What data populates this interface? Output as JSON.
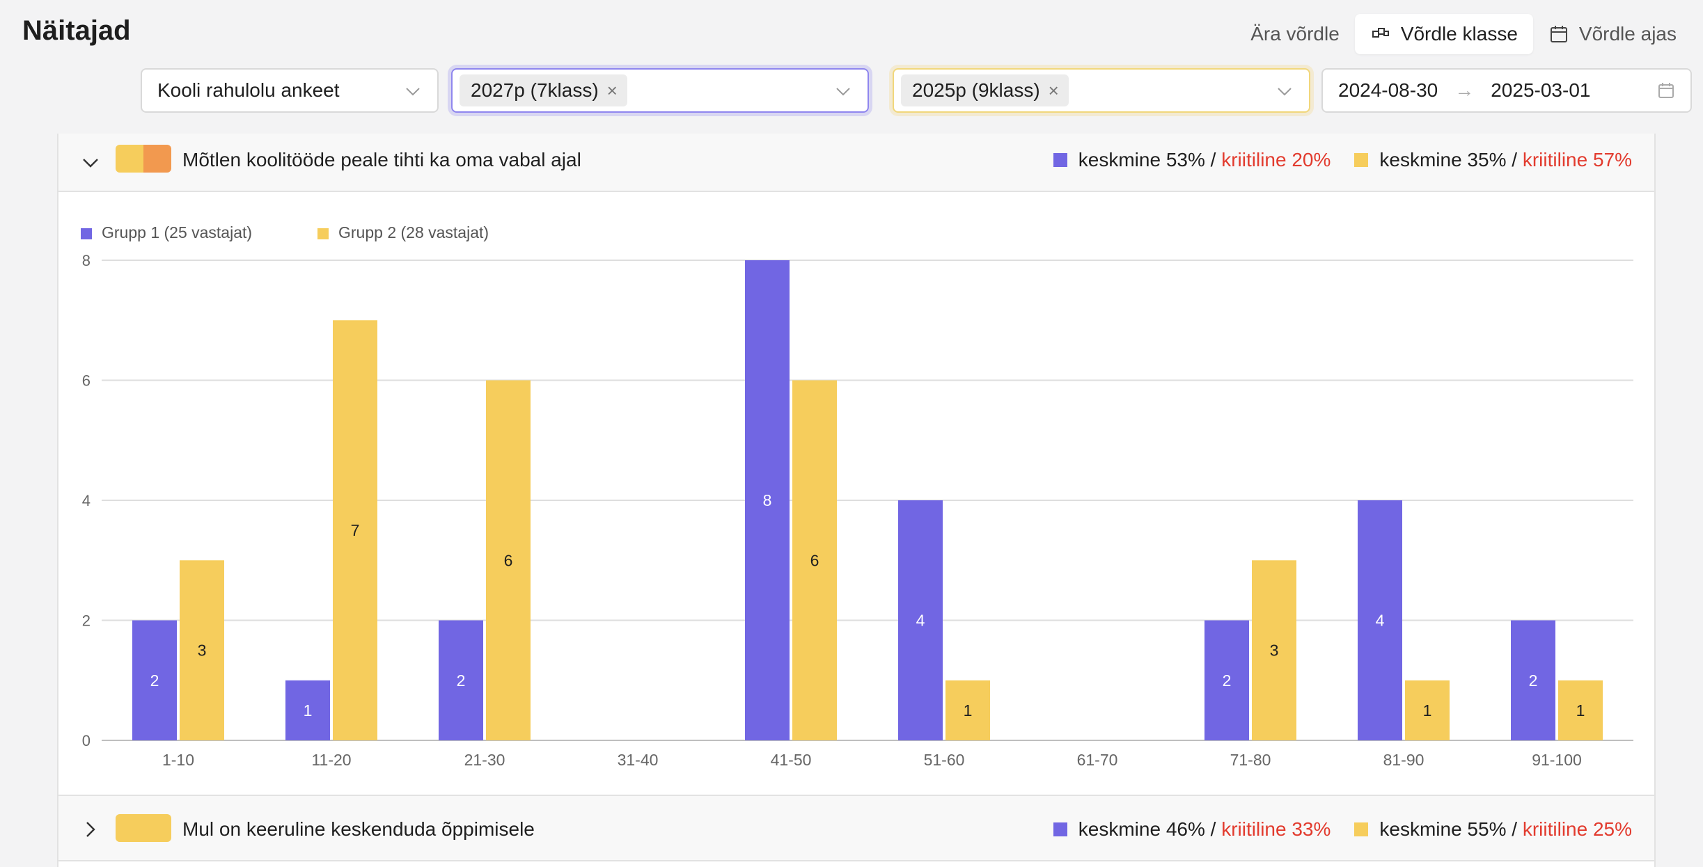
{
  "page": {
    "title": "Näitajad"
  },
  "toolbar": {
    "no_compare": "Ära võrdle",
    "compare_classes": "Võrdle klasse",
    "compare_time": "Võrdle ajas"
  },
  "filters": {
    "survey": "Kooli rahulolu ankeet",
    "group1_tag": "2027p (7klass)",
    "group2_tag": "2025p (9klass)",
    "date_from": "2024-08-30",
    "date_sep": "→",
    "date_to": "2025-03-01",
    "tag_remove": "×"
  },
  "colors": {
    "group1": "#7166e3",
    "group2": "#f6cd5c",
    "swatch_alt": "#f2994f",
    "critical": "#e23b2e"
  },
  "questions": [
    {
      "title": "Mõtlen koolitööde peale tihti ka oma vabal ajal",
      "expanded": true,
      "stats": [
        {
          "avg": "keskmine 53%",
          "sep": " / ",
          "crit": "kriitiline 20%"
        },
        {
          "avg": "keskmine 35%",
          "sep": " / ",
          "crit": "kriitiline 57%"
        }
      ]
    },
    {
      "title": "Mul on keeruline keskenduda õppimisele",
      "expanded": false,
      "stats": [
        {
          "avg": "keskmine 46%",
          "sep": " / ",
          "crit": "kriitiline 33%"
        },
        {
          "avg": "keskmine 55%",
          "sep": " / ",
          "crit": "kriitiline 25%"
        }
      ]
    }
  ],
  "chart_data": {
    "type": "bar",
    "categories": [
      "1-10",
      "11-20",
      "21-30",
      "31-40",
      "41-50",
      "51-60",
      "61-70",
      "71-80",
      "81-90",
      "91-100"
    ],
    "series": [
      {
        "name": "Grupp 1 (25 vastajat)",
        "color": "#7166e3",
        "values": [
          2,
          1,
          2,
          0,
          8,
          4,
          0,
          2,
          4,
          2
        ]
      },
      {
        "name": "Grupp 2 (28 vastajat)",
        "color": "#f6cd5c",
        "values": [
          3,
          7,
          6,
          0,
          6,
          1,
          0,
          3,
          1,
          1
        ]
      }
    ],
    "yticks": [
      0,
      2,
      4,
      6,
      8
    ],
    "ylim": [
      0,
      8
    ],
    "grid": true,
    "legend": "top-left",
    "data_labels": true
  }
}
